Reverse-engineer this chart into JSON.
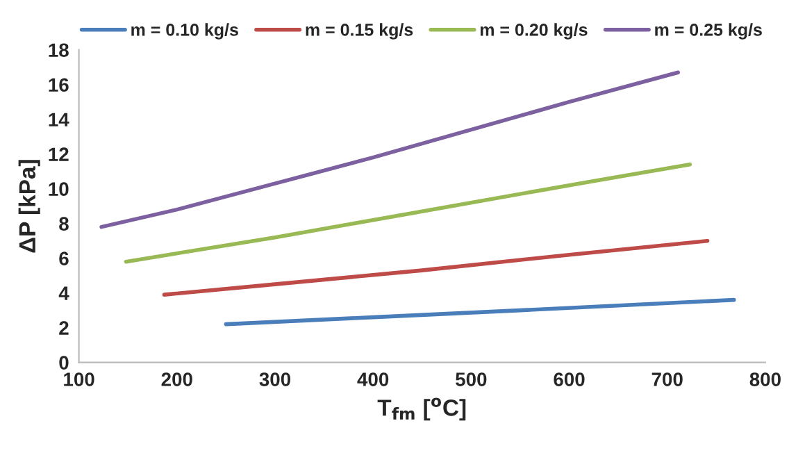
{
  "chart_data": {
    "type": "line",
    "xlabel": "T$_{fm}$ [$^{o}$C]",
    "ylabel": "ΔP [kPa]",
    "xlim": [
      100,
      800
    ],
    "xticks": [
      100,
      200,
      300,
      400,
      500,
      600,
      700,
      800
    ],
    "ylim": [
      0,
      18
    ],
    "yticks": [
      0,
      2,
      4,
      6,
      8,
      10,
      12,
      14,
      16,
      18
    ],
    "grid": false,
    "legend": "top",
    "line_style": "solid",
    "series": [
      {
        "name": "m = 0.10 kg/s",
        "color": "#4a7ebb",
        "x": [
          250,
          400,
          550,
          768
        ],
        "values": [
          2.2,
          2.6,
          3.0,
          3.6
        ]
      },
      {
        "name": "m = 0.15 kg/s",
        "color": "#be4b48",
        "x": [
          187,
          300,
          450,
          600,
          741
        ],
        "values": [
          3.9,
          4.5,
          5.3,
          6.2,
          7.0
        ]
      },
      {
        "name": "m = 0.20 kg/s",
        "color": "#98b954",
        "x": [
          148,
          300,
          450,
          600,
          723
        ],
        "values": [
          5.8,
          7.2,
          8.7,
          10.2,
          11.4
        ]
      },
      {
        "name": "m = 0.25 kg/s",
        "color": "#7d60a0",
        "x": [
          123,
          200,
          300,
          400,
          500,
          600,
          711
        ],
        "values": [
          7.8,
          8.8,
          10.3,
          11.8,
          13.4,
          15.0,
          16.7
        ]
      }
    ]
  }
}
